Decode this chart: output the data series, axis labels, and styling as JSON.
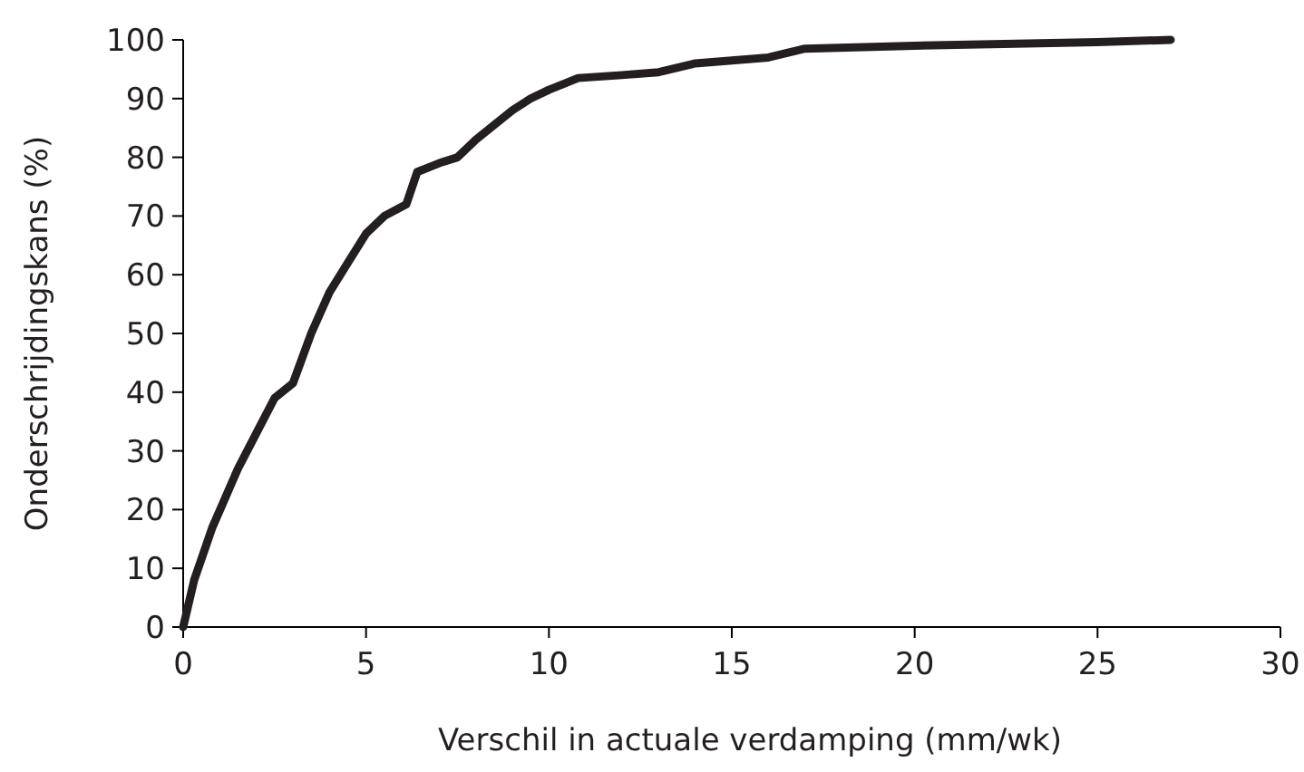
{
  "chart_data": {
    "type": "line",
    "xlabel": "Verschil in actuale verdamping (mm/wk)",
    "ylabel": "Onderschrijdingskans (%)",
    "xlim": [
      0,
      30
    ],
    "xticks": [
      0,
      5,
      10,
      15,
      20,
      25,
      30
    ],
    "ylim": [
      0,
      100
    ],
    "yticks": [
      0,
      10,
      20,
      30,
      40,
      50,
      60,
      70,
      80,
      90,
      100
    ],
    "grid": false,
    "marker": "none",
    "line_style": "solid",
    "series": [
      {
        "color": "#231f20",
        "x": [
          0,
          0.3,
          0.8,
          1.5,
          2,
          2.5,
          3,
          3.5,
          4,
          4.5,
          5,
          5.5,
          6.1,
          6.4,
          7,
          7.5,
          8,
          9,
          9.5,
          10,
          10.8,
          12,
          13,
          14,
          15,
          16,
          17,
          20,
          25,
          27
        ],
        "values": [
          0,
          8,
          17,
          27,
          33,
          39,
          41.5,
          50,
          57,
          62,
          67,
          70,
          72,
          77.5,
          79,
          80,
          83,
          88,
          90,
          91.5,
          93.5,
          94,
          94.5,
          96,
          96.5,
          97,
          98.5,
          99,
          99.6,
          100
        ]
      }
    ]
  }
}
